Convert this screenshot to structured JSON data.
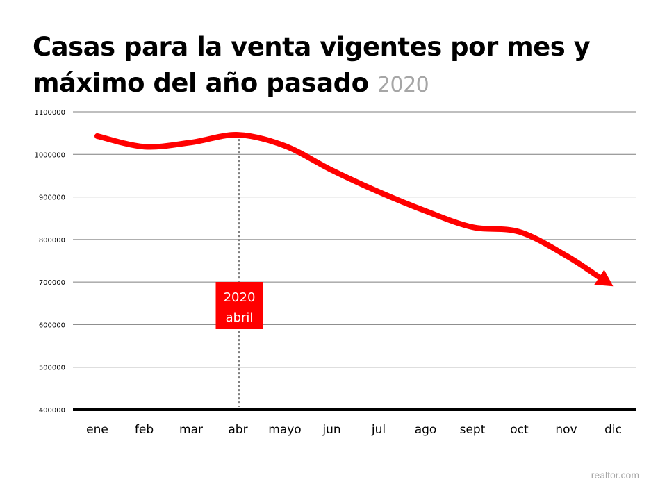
{
  "chart_data": {
    "type": "line",
    "title": "Casas para la venta vigentes por mes y máximo del año pasado",
    "subtitle": "2020",
    "xlabel": "",
    "ylabel": "",
    "categories": [
      "ene",
      "feb",
      "mar",
      "abr",
      "mayo",
      "jun",
      "jul",
      "ago",
      "sept",
      "oct",
      "nov",
      "dic"
    ],
    "series": [
      {
        "values": [
          1043000,
          1018000,
          1028000,
          1046000,
          1020000,
          963000,
          912000,
          867000,
          829000,
          818000,
          762000,
          690000
        ],
        "color": "#ff0000"
      }
    ],
    "ylim": [
      400000,
      1100000
    ],
    "yticks": [
      "400000",
      "500000",
      "600000",
      "700000",
      "800000",
      "900000",
      "1000000",
      "1100000"
    ],
    "grid": true,
    "end_marker": "arrow",
    "annotation": {
      "category": "abr",
      "line1": "2020",
      "line2": "abril",
      "color": "#ff0000",
      "style": "dotted-vertical-line"
    }
  },
  "source": "realtor.com"
}
